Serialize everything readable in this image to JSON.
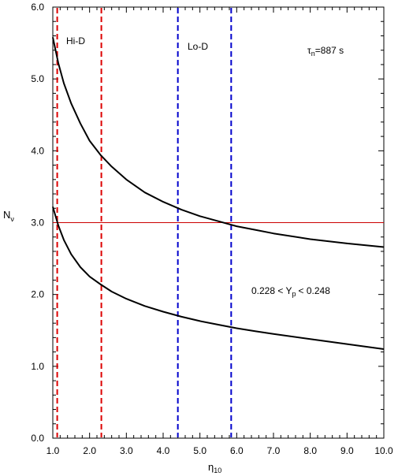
{
  "chart_data": {
    "type": "line",
    "title": "",
    "xlabel": "η",
    "xlabel_sub": "10",
    "ylabel": "N",
    "ylabel_sub": "ν",
    "xlim": [
      1.0,
      10.0
    ],
    "ylim": [
      0.0,
      6.0
    ],
    "xticks": [
      "1.0",
      "2.0",
      "3.0",
      "4.0",
      "5.0",
      "6.0",
      "7.0",
      "8.0",
      "9.0",
      "10.0"
    ],
    "yticks": [
      "0.0",
      "1.0",
      "2.0",
      "3.0",
      "4.0",
      "5.0",
      "6.0"
    ],
    "grid": false,
    "series": [
      {
        "color": "#000000",
        "x": [
          1.0,
          1.15,
          1.3,
          1.5,
          1.75,
          2.0,
          2.3,
          2.6,
          3.0,
          3.5,
          4.0,
          4.5,
          5.0,
          5.5,
          6.0,
          6.5,
          7.0,
          8.0,
          9.0,
          10.0
        ],
        "y": [
          5.58,
          5.22,
          4.94,
          4.66,
          4.38,
          4.14,
          3.94,
          3.78,
          3.6,
          3.42,
          3.29,
          3.18,
          3.09,
          3.02,
          2.95,
          2.9,
          2.85,
          2.77,
          2.71,
          2.66
        ]
      },
      {
        "color": "#000000",
        "x": [
          1.0,
          1.15,
          1.3,
          1.5,
          1.75,
          2.0,
          2.3,
          2.6,
          3.0,
          3.5,
          4.0,
          4.5,
          5.0,
          5.5,
          6.0,
          6.5,
          7.0,
          8.0,
          9.0,
          10.0
        ],
        "y": [
          3.22,
          2.96,
          2.76,
          2.56,
          2.38,
          2.25,
          2.14,
          2.04,
          1.94,
          1.84,
          1.76,
          1.69,
          1.63,
          1.58,
          1.53,
          1.49,
          1.45,
          1.38,
          1.31,
          1.24
        ]
      }
    ],
    "hlines": [
      {
        "y": 3.0,
        "color": "#cc0000",
        "style": "solid"
      }
    ],
    "vlines": [
      {
        "x": 1.12,
        "color": "#dd0000",
        "style": "dashed"
      },
      {
        "x": 2.32,
        "color": "#dd0000",
        "style": "dashed"
      },
      {
        "x": 4.4,
        "color": "#0000cc",
        "style": "dashed"
      },
      {
        "x": 5.85,
        "color": "#0000cc",
        "style": "dashed"
      }
    ],
    "annotations": {
      "hi_d": "Hi-D",
      "lo_d": "Lo-D",
      "tau_sym": "τ",
      "tau_sub": "n",
      "tau_val": "=887 s",
      "yp_pre": "0.228 < Y",
      "yp_sub": "p",
      "yp_post": "< 0.248"
    }
  }
}
